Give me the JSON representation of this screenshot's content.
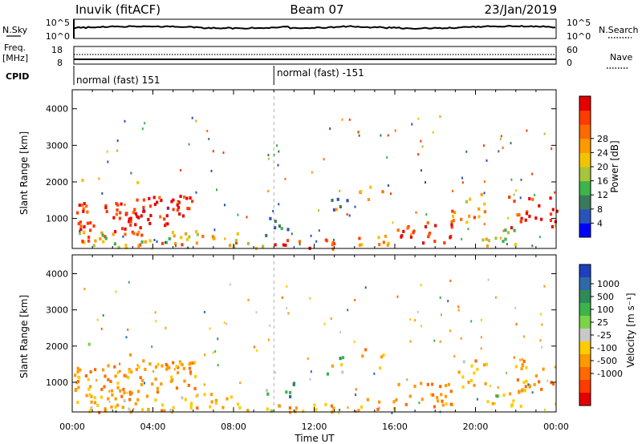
{
  "header": {
    "station": "Inuvik (fitACF)",
    "beam": "Beam 07",
    "date": "23/Jan/2019"
  },
  "strip_nsky": {
    "left_label": "N.Sky",
    "right_label": "N.Search",
    "ticks_left": [
      "10^5",
      "10^0"
    ],
    "ticks_right": [
      "10^5",
      "10^0"
    ]
  },
  "strip_freq": {
    "left_label_line1": "Freq.",
    "left_label_line2": "[MHz]",
    "right_label": "Nave",
    "ticks_left": [
      "18",
      "8"
    ],
    "ticks_right": [
      "60",
      "0"
    ]
  },
  "cpid": {
    "label": "CPID",
    "segments": [
      {
        "text": "normal (fast) 151",
        "start_hour": 0
      },
      {
        "text": "normal (fast) -151",
        "start_hour": 10
      }
    ]
  },
  "chart_data": [
    {
      "type": "heatmap",
      "panel": "power",
      "ylabel": "Slant Range [km]",
      "xlim_hours": [
        0,
        24
      ],
      "ylim_km": [
        180,
        4520
      ],
      "yticks": [
        1000,
        2000,
        3000,
        4000
      ],
      "colorbar": {
        "label": "Power [dB]",
        "ticks": [
          "4",
          "8",
          "12",
          "16",
          "20",
          "24",
          "28"
        ],
        "colors": [
          "#0000ff",
          "#2a52be",
          "#3a7a5a",
          "#3cb44b",
          "#a6c43c",
          "#f2c400",
          "#ff9900",
          "#ff6a00",
          "#ff3b00",
          "#e60000"
        ]
      }
    },
    {
      "type": "heatmap",
      "panel": "velocity",
      "ylabel": "Slant Range [km]",
      "xlim_hours": [
        0,
        24
      ],
      "ylim_km": [
        180,
        4520
      ],
      "yticks": [
        1000,
        2000,
        3000,
        4000
      ],
      "xticks": [
        "00:00",
        "04:00",
        "08:00",
        "12:00",
        "16:00",
        "20:00",
        "00:00"
      ],
      "xlabel": "Time UT",
      "colorbar": {
        "label": "Velocity [m s⁻¹]",
        "ticks": [
          "1000",
          "500",
          "100",
          "25",
          "-25",
          "-100",
          "-500",
          "-1000"
        ],
        "colors": [
          "#1f3fbf",
          "#2f6aa8",
          "#2e8b57",
          "#3cb44b",
          "#7bd34a",
          "#c8c8c8",
          "#ffcc00",
          "#ff9900",
          "#ff6a00",
          "#ff3b00",
          "#e60000"
        ]
      }
    }
  ]
}
